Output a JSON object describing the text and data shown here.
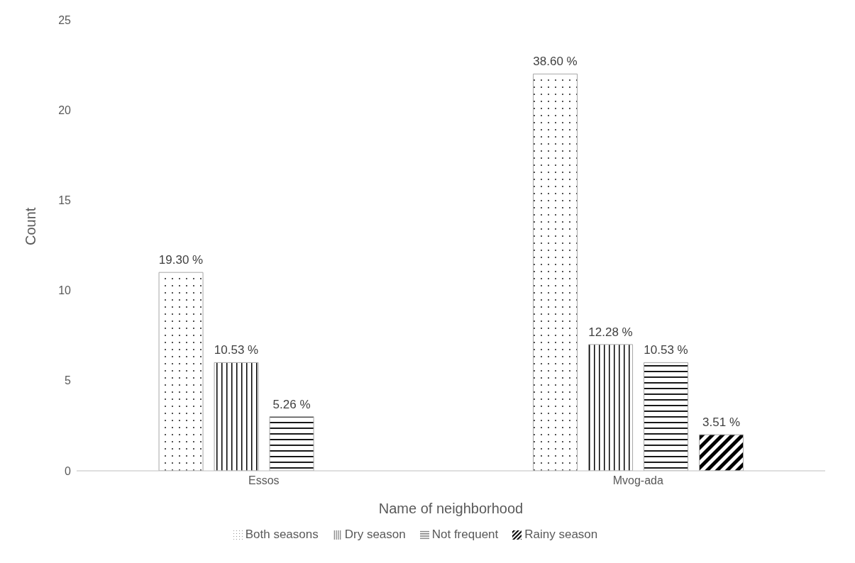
{
  "chart_data": {
    "type": "bar",
    "xlabel": "Name of neighborhood",
    "ylabel": "Count",
    "categories": [
      "Essos",
      "Mvog-ada"
    ],
    "series": [
      {
        "name": "Both seasons",
        "color": "#a6a6a6",
        "values": [
          11,
          22
        ]
      },
      {
        "name": "Dry season",
        "color": "#a6a6a6",
        "values": [
          6,
          7
        ]
      },
      {
        "name": "Not frequent",
        "color": "#a6a6a6",
        "values": [
          3,
          6
        ]
      },
      {
        "name": "Rainy season",
        "color": "#a6a6a6",
        "values": [
          null,
          2
        ]
      }
    ],
    "annotations": [
      "19.30 %",
      "10.53 %",
      "5.26 %",
      "38.60 %",
      "12.28 %",
      "10.53 %",
      "3.51 %"
    ],
    "ylim": [
      0,
      25
    ],
    "yticks": [
      0,
      5,
      10,
      15,
      20,
      25
    ],
    "grid": false,
    "legend": "bottom"
  }
}
